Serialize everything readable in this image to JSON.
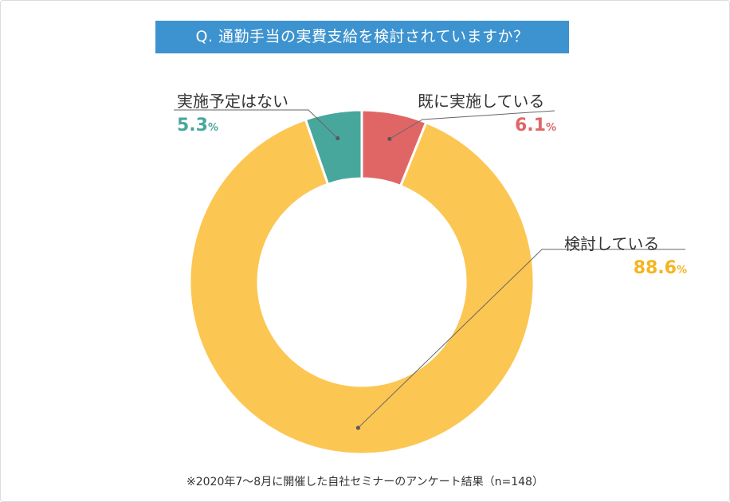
{
  "title": "Q. 通勤手当の実費支給を検討されていますか？",
  "footnote": "※2020年7〜8月に開催した自社セミナーのアンケート結果（n=148）",
  "chart_data": {
    "type": "pie",
    "variant": "donut",
    "title": "Q. 通勤手当の実費支給を検討されていますか？",
    "unit": "%",
    "slices": [
      {
        "label": "既に実施している",
        "value": 6.1,
        "value_text": "6.1",
        "color": "#e06666"
      },
      {
        "label": "検討している",
        "value": 88.6,
        "value_text": "88.6",
        "color": "#fcc652"
      },
      {
        "label": "実施予定はない",
        "value": 5.3,
        "value_text": "5.3",
        "color": "#47a79d"
      }
    ]
  }
}
